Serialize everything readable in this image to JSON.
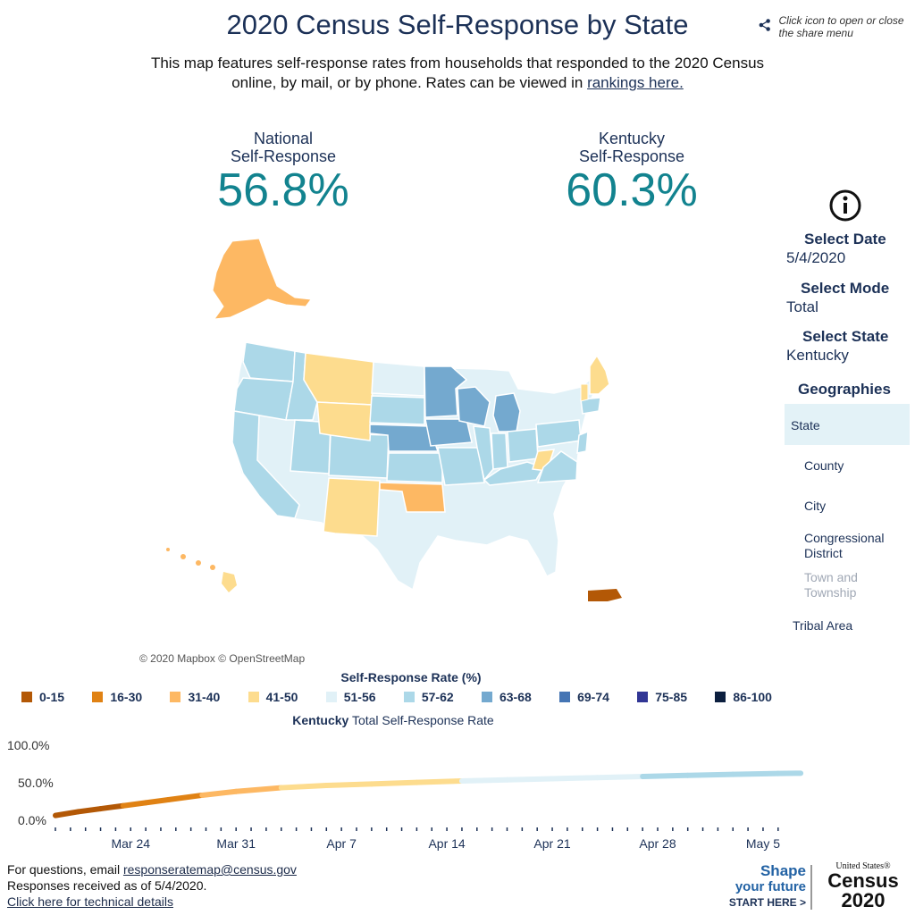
{
  "header": {
    "title": "2020 Census Self-Response by State",
    "subtitle_pre": "This map features self-response rates from households that responded to the 2020 Census online, by mail, or by phone. Rates can be viewed in",
    "subtitle_link": "rankings here.",
    "share_text": "Click icon to open or close the share menu"
  },
  "stats": {
    "national_label_1": "National",
    "national_label_2": "Self-Response",
    "national_value": "56.8%",
    "state_label_1": "Kentucky",
    "state_label_2": "Self-Response",
    "state_value": "60.3%"
  },
  "controls": {
    "date_label": "Select Date",
    "date_value": "5/4/2020",
    "mode_label": "Select Mode",
    "mode_value": "Total",
    "state_label": "Select State",
    "state_value": "Kentucky",
    "geo_label": "Geographies",
    "geographies": [
      "State",
      "County",
      "City",
      "Congressional District",
      "Town and Township",
      "Tribal Area"
    ]
  },
  "map": {
    "attribution": "© 2020 Mapbox © OpenStreetMap"
  },
  "legend": {
    "title": "Self-Response Rate (%)",
    "items": [
      {
        "label": "0-15",
        "color": "#b35806"
      },
      {
        "label": "16-30",
        "color": "#e08214"
      },
      {
        "label": "31-40",
        "color": "#fdb863"
      },
      {
        "label": "41-50",
        "color": "#fddc8e"
      },
      {
        "label": "51-56",
        "color": "#e1f1f7"
      },
      {
        "label": "57-62",
        "color": "#acd8e8"
      },
      {
        "label": "63-68",
        "color": "#74a9cf"
      },
      {
        "label": "69-74",
        "color": "#4575b4"
      },
      {
        "label": "75-85",
        "color": "#313695"
      },
      {
        "label": "86-100",
        "color": "#0c1f3f"
      }
    ]
  },
  "chart_data": {
    "type": "line",
    "title_bold": "Kentucky",
    "title_rest": "Total Self-Response Rate",
    "ylim": [
      0,
      100
    ],
    "y_ticks": [
      "100.0%",
      "50.0%",
      "0.0%"
    ],
    "x_ticks": [
      "Mar 24",
      "Mar 31",
      "Apr 7",
      "Apr 14",
      "Apr 21",
      "Apr 28",
      "May 5"
    ],
    "x": [
      0,
      2,
      4,
      6,
      8,
      10,
      13,
      16,
      20,
      24,
      28,
      32,
      36,
      40,
      44,
      48,
      52,
      56,
      60,
      64,
      66
    ],
    "values": [
      4.0,
      9.0,
      13.0,
      17.0,
      21.0,
      25.0,
      31.0,
      36.0,
      41.0,
      44.0,
      46.0,
      48.0,
      50.0,
      51.5,
      53.0,
      54.5,
      56.0,
      57.5,
      58.8,
      60.0,
      60.3
    ]
  },
  "footer": {
    "q_pre": "For questions, email",
    "email": "responseratemap@census.gov",
    "received": "Responses received as of 5/4/2020.",
    "tech_link": "Click here for technical details"
  },
  "logo": {
    "shape": "Shape",
    "your_future": "your future",
    "start_here": "START HERE >",
    "us": "United States®",
    "census": "Census",
    "year": "2020"
  }
}
